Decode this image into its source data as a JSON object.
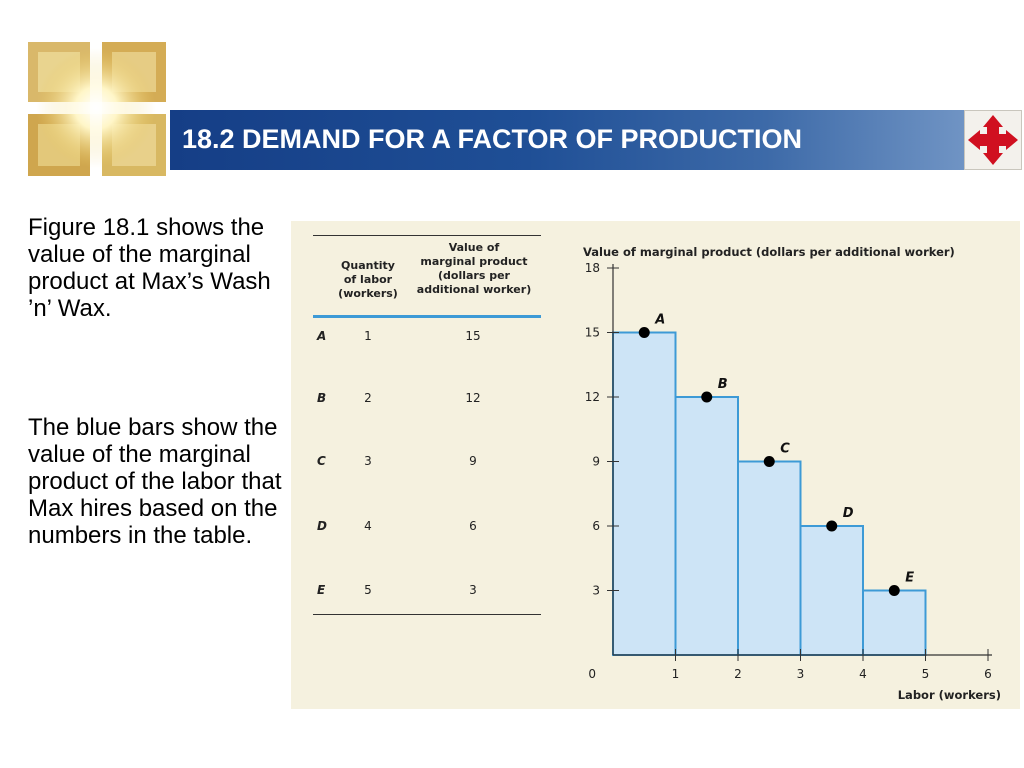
{
  "header": {
    "title": "18.2 DEMAND FOR A FACTOR OF PRODUCTION"
  },
  "logo_icon": "sparkle-squares-logo-icon",
  "nav_icon": "four-way-arrow-icon",
  "colors": {
    "bar_fill": "#cde4f6",
    "bar_stroke": "#3d9ad6",
    "title_bar": "#1a468e",
    "nav_arrows": "#d01020"
  },
  "body_text": {
    "para1": "Figure 18.1 shows the value of the marginal product at Max’s Wash ’n’ Wax.",
    "para2": "The blue bars show the value of the marginal product of the labor that Max hires based on the numbers in the table."
  },
  "table": {
    "col1_header": [
      "Quantity",
      "of labor",
      "(workers)"
    ],
    "col2_header": [
      "Value of",
      "marginal product",
      "(dollars per",
      "additional worker)"
    ],
    "rows": [
      {
        "label": "A",
        "labor": "1",
        "value": "15"
      },
      {
        "label": "B",
        "labor": "2",
        "value": "12"
      },
      {
        "label": "C",
        "label_": "C",
        "labor": "3",
        "value": "9"
      },
      {
        "label": "D",
        "labor": "4",
        "value": "6"
      },
      {
        "label": "E",
        "labor": "5",
        "value": "3"
      }
    ]
  },
  "chart_data": {
    "type": "bar",
    "ylabel": "Value of marginal product (dollars per additional worker)",
    "xlabel": "Labor (workers)",
    "xlim": [
      0,
      6
    ],
    "ylim": [
      0,
      18
    ],
    "x_ticks": [
      "1",
      "2",
      "3",
      "4",
      "5",
      "6"
    ],
    "y_ticks": [
      "3",
      "6",
      "9",
      "12",
      "15",
      "18"
    ],
    "origin_label": "0",
    "bars": [
      {
        "x_start": 0,
        "x_end": 1,
        "value": 15
      },
      {
        "x_start": 1,
        "x_end": 2,
        "value": 12
      },
      {
        "x_start": 2,
        "x_end": 3,
        "value": 9
      },
      {
        "x_start": 3,
        "x_end": 4,
        "value": 6
      },
      {
        "x_start": 4,
        "x_end": 5,
        "value": 3
      }
    ],
    "points": [
      {
        "label": "A",
        "x": 0.5,
        "y": 15
      },
      {
        "label": "B",
        "x": 1.5,
        "y": 12
      },
      {
        "label": "C",
        "x": 2.5,
        "y": 9
      },
      {
        "label": "D",
        "x": 3.5,
        "y": 6
      },
      {
        "label": "E",
        "x": 4.5,
        "y": 3
      }
    ],
    "grid": false,
    "legend": "none"
  }
}
